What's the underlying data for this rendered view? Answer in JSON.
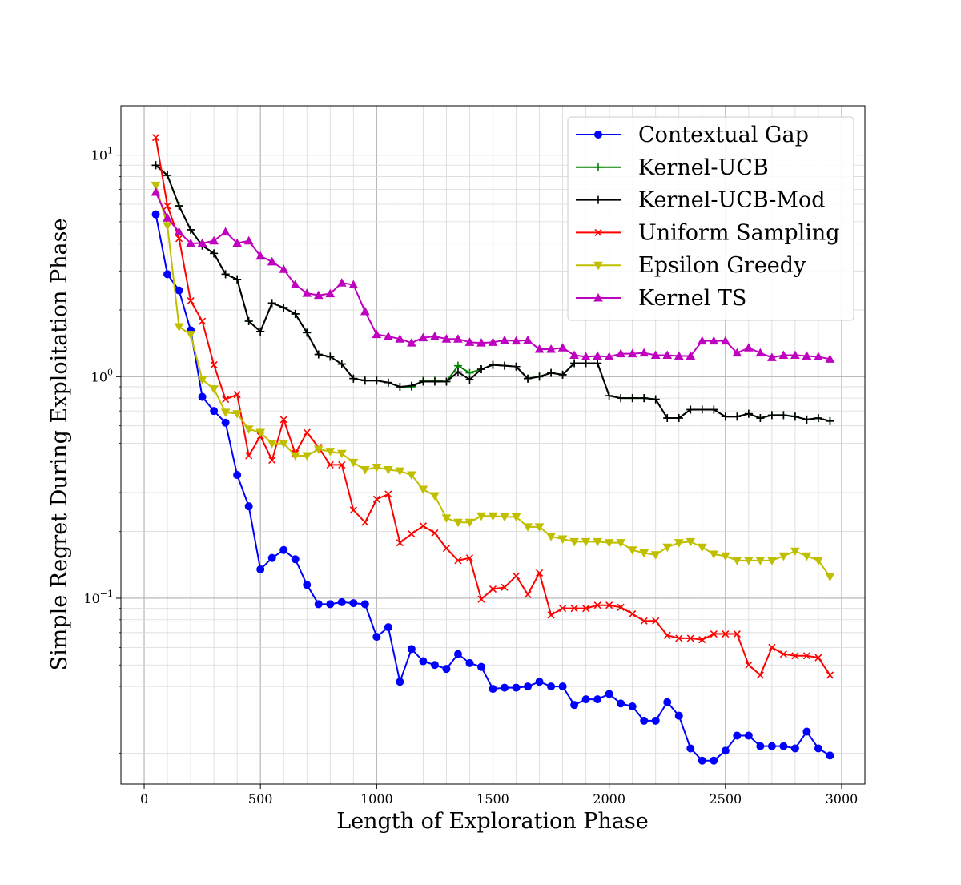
{
  "chart_data": {
    "type": "line",
    "title": "",
    "xlabel": "Length of Exploration Phase",
    "ylabel": "Simple Regret During Exploitation Phase",
    "xlim": [
      -100,
      3100
    ],
    "ylim": [
      0.0145,
      16.7
    ],
    "yscale": "log",
    "grid": true,
    "legend_position": "top-right",
    "x_ticks": [
      0,
      500,
      1000,
      1500,
      2000,
      2500,
      3000
    ],
    "x_tick_labels": [
      "0",
      "500",
      "1000",
      "1500",
      "2000",
      "2500",
      "3000"
    ],
    "y_ticks": [
      0.1,
      1,
      10
    ],
    "y_tick_labels": [
      {
        "base": "10",
        "exp": "−1"
      },
      {
        "base": "10",
        "exp": "0"
      },
      {
        "base": "10",
        "exp": "1"
      }
    ],
    "x": [
      50,
      100,
      150,
      200,
      250,
      300,
      350,
      400,
      450,
      500,
      550,
      600,
      650,
      700,
      750,
      800,
      850,
      900,
      950,
      1000,
      1050,
      1100,
      1150,
      1200,
      1250,
      1300,
      1350,
      1400,
      1450,
      1500,
      1550,
      1600,
      1650,
      1700,
      1750,
      1800,
      1850,
      1900,
      1950,
      2000,
      2050,
      2100,
      2150,
      2200,
      2250,
      2300,
      2350,
      2400,
      2450,
      2500,
      2550,
      2600,
      2650,
      2700,
      2750,
      2800,
      2850,
      2900,
      2950
    ],
    "series": [
      {
        "name": "Contextual Gap",
        "color": "#0000ff",
        "marker": "circle",
        "x": [
          50,
          100,
          150,
          200,
          250,
          300,
          350,
          400,
          450,
          500,
          550,
          600,
          650,
          700,
          750,
          800,
          850,
          900,
          950,
          1000,
          1050,
          1100,
          1150,
          1200,
          1250,
          1300,
          1350,
          1400,
          1450,
          1500,
          1550,
          1600,
          1650,
          1700,
          1750,
          1800,
          1850,
          1900,
          1950,
          2000,
          2050,
          2100,
          2150,
          2200,
          2250,
          2300,
          2350,
          2400,
          2450,
          2500,
          2550,
          2600,
          2650,
          2700,
          2750,
          2800,
          2850,
          2900,
          2950
        ],
        "values": [
          5.4,
          2.9,
          2.45,
          1.62,
          0.81,
          0.7,
          0.62,
          0.36,
          0.26,
          0.135,
          0.152,
          0.165,
          0.15,
          0.115,
          0.094,
          0.094,
          0.096,
          0.095,
          0.094,
          0.067,
          0.074,
          0.042,
          0.059,
          0.052,
          0.05,
          0.048,
          0.056,
          0.051,
          0.049,
          0.039,
          0.0395,
          0.0395,
          0.04,
          0.042,
          0.04,
          0.04,
          0.033,
          0.035,
          0.035,
          0.037,
          0.0335,
          0.0325,
          0.028,
          0.028,
          0.034,
          0.0295,
          0.021,
          0.0185,
          0.0185,
          0.0205,
          0.024,
          0.024,
          0.0215,
          0.0215,
          0.0215,
          0.021,
          0.025,
          0.021,
          0.0195
        ]
      },
      {
        "name": "Kernel-UCB",
        "color": "#008000",
        "marker": "plus",
        "x": [
          50,
          100,
          150,
          200,
          250,
          300,
          350,
          400,
          450,
          500,
          550,
          600,
          650,
          700,
          750,
          800,
          850,
          900,
          950,
          1000,
          1050,
          1100,
          1150,
          1200,
          1250,
          1300,
          1350,
          1400,
          1450,
          1500,
          1550,
          1600,
          1650,
          1700,
          1750,
          1800,
          1850,
          1900,
          1950,
          2000,
          2050,
          2100,
          2150,
          2200,
          2250,
          2300,
          2350,
          2400,
          2450,
          2500,
          2550,
          2600,
          2650,
          2700,
          2750,
          2800,
          2850,
          2900,
          2950
        ],
        "values": [
          9.0,
          8.1,
          5.9,
          4.6,
          3.9,
          3.6,
          2.9,
          2.75,
          1.78,
          1.6,
          2.15,
          2.05,
          1.92,
          1.58,
          1.26,
          1.23,
          1.14,
          0.98,
          0.96,
          0.96,
          0.94,
          0.9,
          0.9,
          0.96,
          0.96,
          0.95,
          1.12,
          1.04,
          1.08,
          1.13,
          1.12,
          1.11,
          0.98,
          1.0,
          1.04,
          1.02,
          1.15,
          1.15,
          1.15,
          0.82,
          0.8,
          0.8,
          0.8,
          0.79,
          0.65,
          0.65,
          0.71,
          0.71,
          0.71,
          0.66,
          0.66,
          0.68,
          0.65,
          0.67,
          0.67,
          0.66,
          0.64,
          0.65,
          0.63
        ]
      },
      {
        "name": "Kernel-UCB-Mod",
        "color": "#000000",
        "marker": "plus",
        "x": [
          50,
          100,
          150,
          200,
          250,
          300,
          350,
          400,
          450,
          500,
          550,
          600,
          650,
          700,
          750,
          800,
          850,
          900,
          950,
          1000,
          1050,
          1100,
          1150,
          1200,
          1250,
          1300,
          1350,
          1400,
          1450,
          1500,
          1550,
          1600,
          1650,
          1700,
          1750,
          1800,
          1850,
          1900,
          1950,
          2000,
          2050,
          2100,
          2150,
          2200,
          2250,
          2300,
          2350,
          2400,
          2450,
          2500,
          2550,
          2600,
          2650,
          2700,
          2750,
          2800,
          2850,
          2900,
          2950
        ],
        "values": [
          9.0,
          8.1,
          5.9,
          4.6,
          3.9,
          3.6,
          2.9,
          2.75,
          1.78,
          1.6,
          2.15,
          2.05,
          1.92,
          1.58,
          1.26,
          1.23,
          1.14,
          0.98,
          0.96,
          0.96,
          0.94,
          0.9,
          0.91,
          0.95,
          0.95,
          0.95,
          1.05,
          0.97,
          1.08,
          1.13,
          1.12,
          1.11,
          0.98,
          1.0,
          1.04,
          1.02,
          1.15,
          1.15,
          1.15,
          0.82,
          0.8,
          0.8,
          0.8,
          0.79,
          0.65,
          0.65,
          0.71,
          0.71,
          0.71,
          0.66,
          0.66,
          0.68,
          0.65,
          0.67,
          0.67,
          0.66,
          0.64,
          0.65,
          0.63
        ]
      },
      {
        "name": "Uniform Sampling",
        "color": "#ff0000",
        "marker": "x",
        "x": [
          50,
          100,
          150,
          200,
          250,
          300,
          350,
          400,
          450,
          500,
          550,
          600,
          650,
          700,
          750,
          800,
          850,
          900,
          950,
          1000,
          1050,
          1100,
          1150,
          1200,
          1250,
          1300,
          1350,
          1400,
          1450,
          1500,
          1550,
          1600,
          1650,
          1700,
          1750,
          1800,
          1850,
          1900,
          1950,
          2000,
          2050,
          2100,
          2150,
          2200,
          2250,
          2300,
          2350,
          2400,
          2450,
          2500,
          2550,
          2600,
          2650,
          2700,
          2750,
          2800,
          2850,
          2900,
          2950
        ],
        "values": [
          12.0,
          5.9,
          4.2,
          2.2,
          1.78,
          1.13,
          0.79,
          0.83,
          0.44,
          0.54,
          0.42,
          0.64,
          0.45,
          0.56,
          0.48,
          0.4,
          0.4,
          0.25,
          0.22,
          0.28,
          0.295,
          0.178,
          0.195,
          0.212,
          0.197,
          0.168,
          0.148,
          0.152,
          0.099,
          0.11,
          0.112,
          0.126,
          0.104,
          0.13,
          0.084,
          0.09,
          0.09,
          0.09,
          0.093,
          0.093,
          0.091,
          0.085,
          0.079,
          0.079,
          0.068,
          0.066,
          0.066,
          0.065,
          0.069,
          0.069,
          0.069,
          0.05,
          0.045,
          0.06,
          0.056,
          0.055,
          0.055,
          0.054,
          0.045
        ]
      },
      {
        "name": "Epsilon Greedy",
        "color": "#bfbf00",
        "marker": "triangle-down",
        "x": [
          50,
          100,
          150,
          200,
          250,
          300,
          350,
          400,
          450,
          500,
          550,
          600,
          650,
          700,
          750,
          800,
          850,
          900,
          950,
          1000,
          1050,
          1100,
          1150,
          1200,
          1250,
          1300,
          1350,
          1400,
          1450,
          1500,
          1550,
          1600,
          1650,
          1700,
          1750,
          1800,
          1850,
          1900,
          1950,
          2000,
          2050,
          2100,
          2150,
          2200,
          2250,
          2300,
          2350,
          2400,
          2450,
          2500,
          2550,
          2600,
          2650,
          2700,
          2750,
          2800,
          2850,
          2900,
          2950
        ],
        "values": [
          7.3,
          4.8,
          1.68,
          1.55,
          0.97,
          0.88,
          0.69,
          0.68,
          0.58,
          0.56,
          0.5,
          0.5,
          0.44,
          0.44,
          0.47,
          0.46,
          0.45,
          0.41,
          0.38,
          0.39,
          0.38,
          0.375,
          0.36,
          0.31,
          0.29,
          0.23,
          0.22,
          0.22,
          0.235,
          0.235,
          0.233,
          0.233,
          0.21,
          0.21,
          0.19,
          0.185,
          0.18,
          0.18,
          0.18,
          0.178,
          0.178,
          0.165,
          0.16,
          0.157,
          0.17,
          0.178,
          0.18,
          0.17,
          0.158,
          0.155,
          0.148,
          0.148,
          0.148,
          0.148,
          0.155,
          0.163,
          0.155,
          0.148,
          0.125
        ]
      },
      {
        "name": "Kernel TS",
        "color": "#bf00bf",
        "marker": "triangle-up",
        "x": [
          50,
          100,
          150,
          200,
          250,
          300,
          350,
          400,
          450,
          500,
          550,
          600,
          650,
          700,
          750,
          800,
          850,
          900,
          950,
          1000,
          1050,
          1100,
          1150,
          1200,
          1250,
          1300,
          1350,
          1400,
          1450,
          1500,
          1550,
          1600,
          1650,
          1700,
          1750,
          1800,
          1850,
          1900,
          1950,
          2000,
          2050,
          2100,
          2150,
          2200,
          2250,
          2300,
          2350,
          2400,
          2450,
          2500,
          2550,
          2600,
          2650,
          2700,
          2750,
          2800,
          2850,
          2900,
          2950
        ],
        "values": [
          6.8,
          5.2,
          4.5,
          4.0,
          4.0,
          4.1,
          4.5,
          4.0,
          4.1,
          3.5,
          3.3,
          3.05,
          2.6,
          2.38,
          2.33,
          2.37,
          2.65,
          2.6,
          1.97,
          1.55,
          1.52,
          1.48,
          1.42,
          1.5,
          1.52,
          1.48,
          1.48,
          1.43,
          1.42,
          1.43,
          1.46,
          1.45,
          1.46,
          1.33,
          1.33,
          1.35,
          1.25,
          1.23,
          1.24,
          1.23,
          1.27,
          1.27,
          1.28,
          1.25,
          1.25,
          1.24,
          1.24,
          1.45,
          1.45,
          1.45,
          1.28,
          1.35,
          1.28,
          1.22,
          1.25,
          1.25,
          1.24,
          1.23,
          1.2
        ]
      }
    ]
  }
}
